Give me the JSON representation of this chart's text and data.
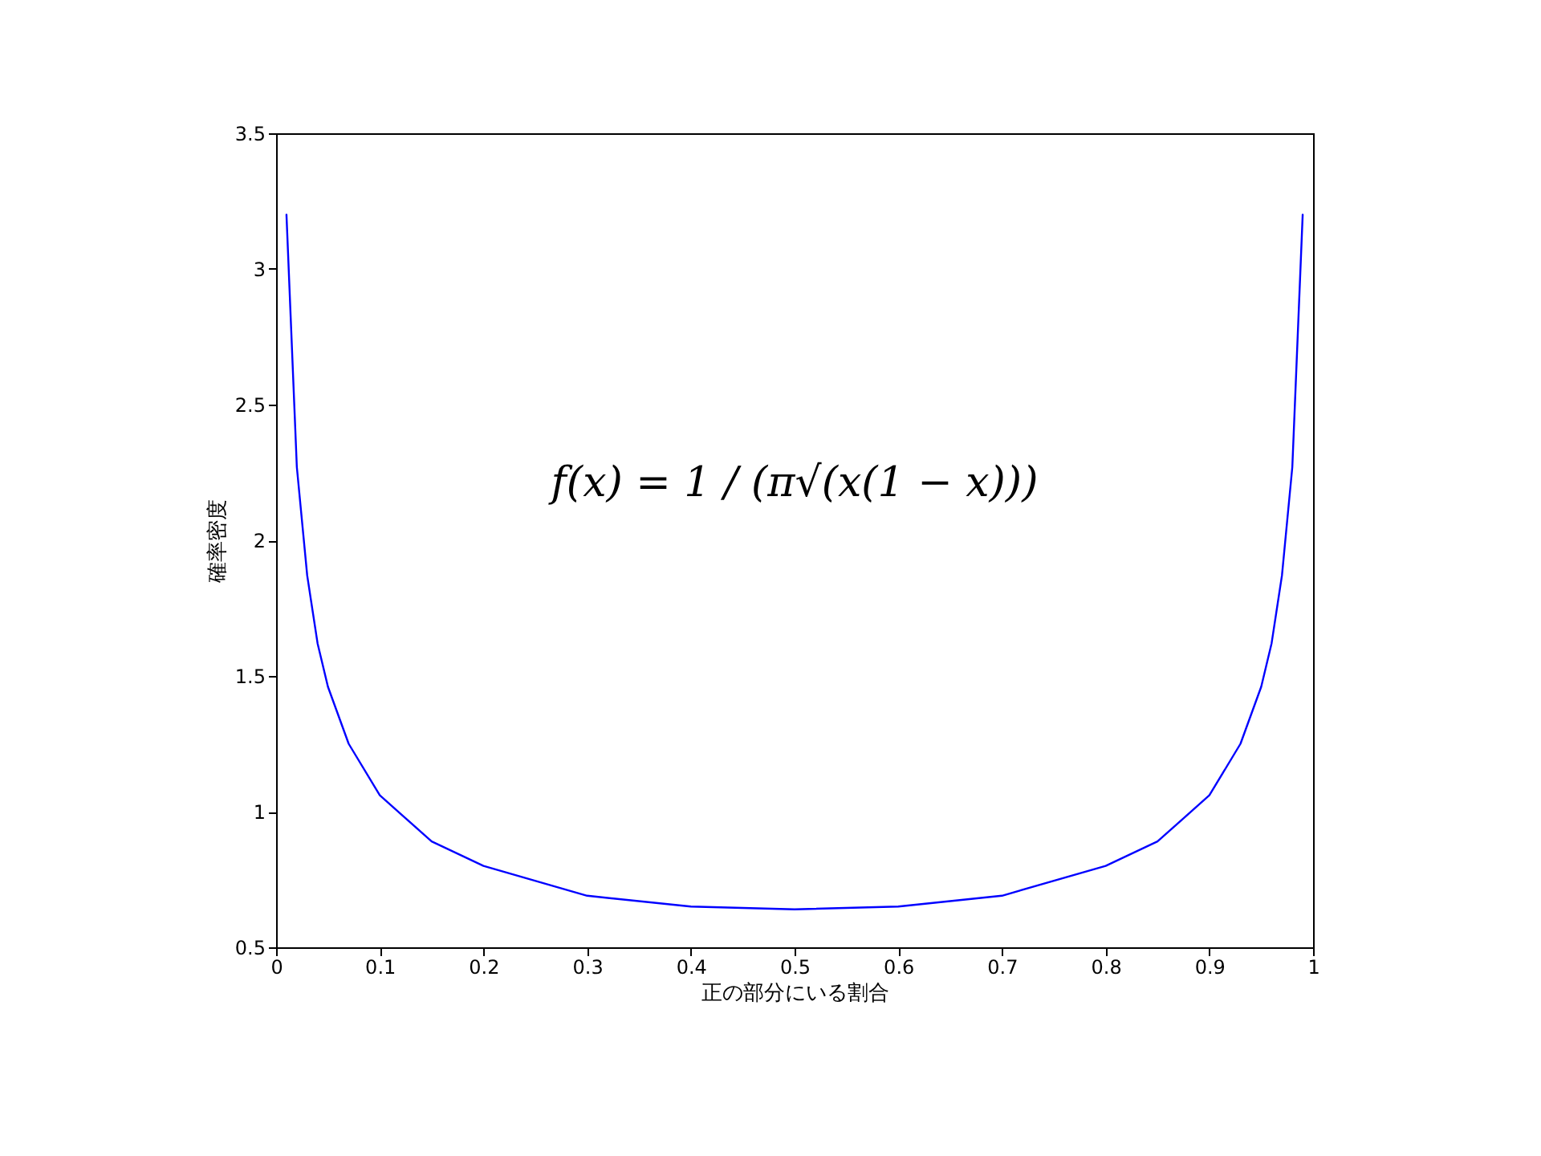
{
  "chart_data": {
    "type": "line",
    "xlabel": "正の部分にいる割合",
    "ylabel": "確率密度",
    "annotations": [
      "f(x) = 1 / (π√(x(1 − x)))"
    ],
    "x": [
      0.01,
      0.02,
      0.03,
      0.04,
      0.05,
      0.07,
      0.1,
      0.15,
      0.2,
      0.3,
      0.4,
      0.5,
      0.6,
      0.7,
      0.8,
      0.85,
      0.9,
      0.93,
      0.95,
      0.96,
      0.97,
      0.98,
      0.99
    ],
    "series": [
      {
        "color": "#0000ff",
        "values": [
          3.2,
          2.27,
          1.87,
          1.62,
          1.46,
          1.25,
          1.06,
          0.89,
          0.8,
          0.69,
          0.65,
          0.64,
          0.65,
          0.69,
          0.8,
          0.89,
          1.06,
          1.25,
          1.46,
          1.62,
          1.87,
          2.27,
          3.2
        ]
      }
    ],
    "xlim": [
      0,
      1
    ],
    "xticks": [
      0,
      0.1,
      0.2,
      0.3,
      0.4,
      0.5,
      0.6,
      0.7,
      0.8,
      0.9,
      1
    ],
    "ylim": [
      0.5,
      3.5
    ],
    "yticks": [
      0.5,
      1,
      1.5,
      2,
      2.5,
      3,
      3.5
    ],
    "grid": false,
    "marker": "none",
    "line_style": "solid"
  }
}
